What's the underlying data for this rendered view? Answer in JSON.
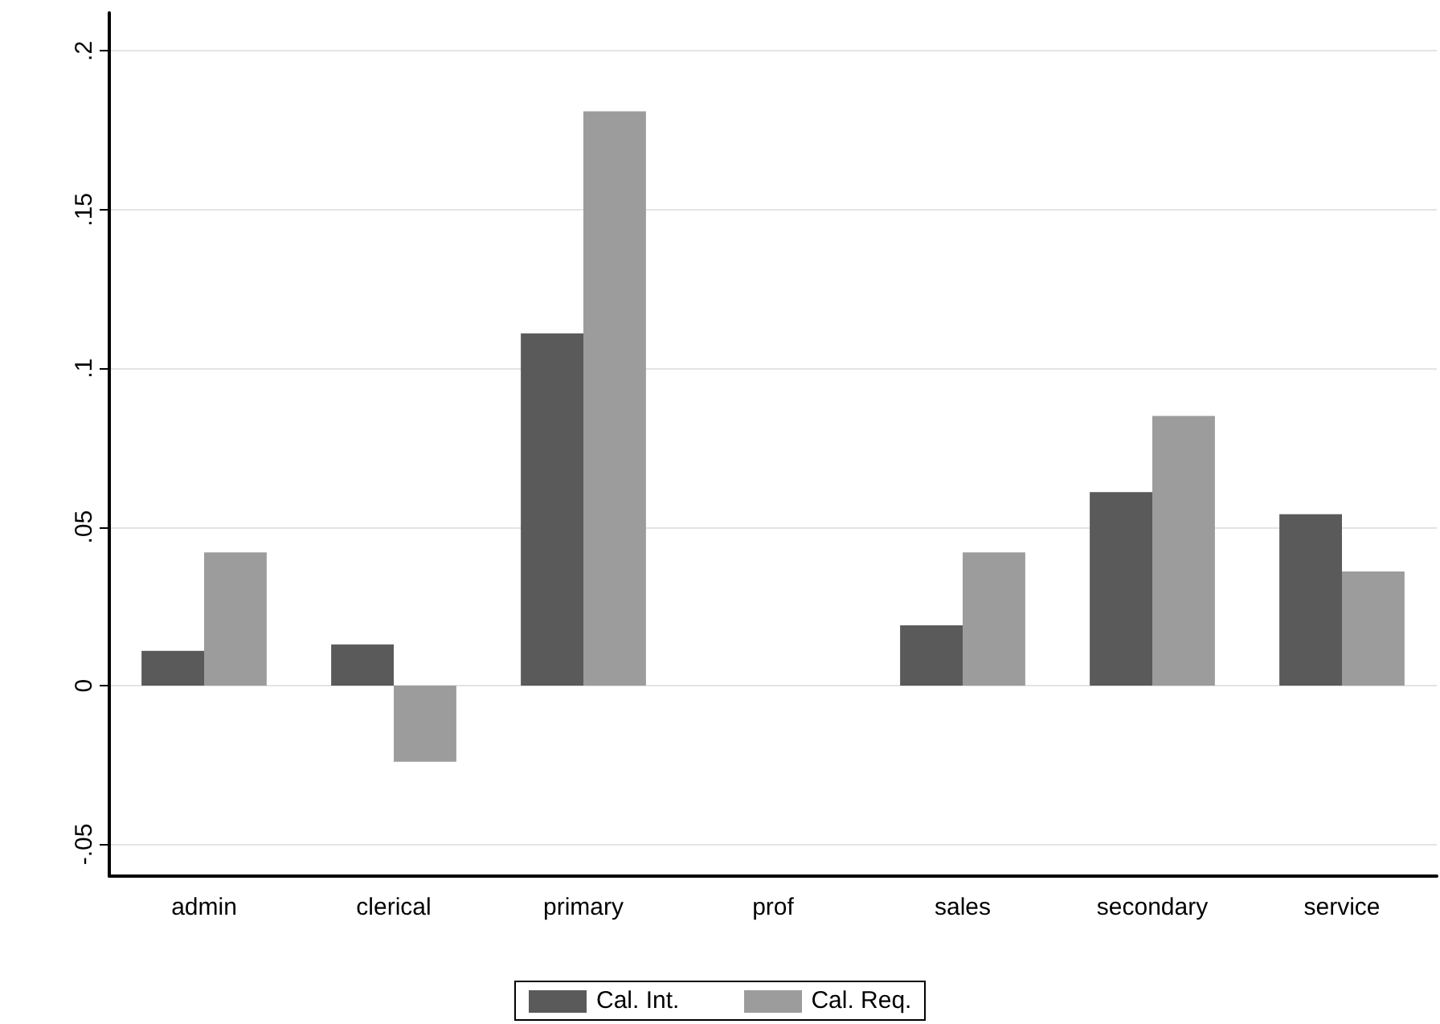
{
  "chart_data": {
    "type": "bar",
    "categories": [
      "admin",
      "clerical",
      "primary",
      "prof",
      "sales",
      "secondary",
      "service"
    ],
    "series": [
      {
        "name": "Cal. Int.",
        "color": "#5a5a5a",
        "values": [
          0.011,
          0.013,
          0.111,
          0,
          0.019,
          0.061,
          0.054
        ]
      },
      {
        "name": "Cal. Req.",
        "color": "#9c9c9c",
        "values": [
          0.042,
          -0.024,
          0.181,
          0,
          0.042,
          0.085,
          0.036
        ]
      }
    ],
    "ylim": [
      -0.06,
      0.212
    ],
    "yticks": [
      {
        "value": -0.05,
        "label": "-.05"
      },
      {
        "value": 0,
        "label": "0"
      },
      {
        "value": 0.05,
        "label": ".05"
      },
      {
        "value": 0.1,
        "label": ".1"
      },
      {
        "value": 0.15,
        "label": ".15"
      },
      {
        "value": 0.2,
        "label": ".2"
      }
    ],
    "grid": "y",
    "legend": "bottom"
  }
}
